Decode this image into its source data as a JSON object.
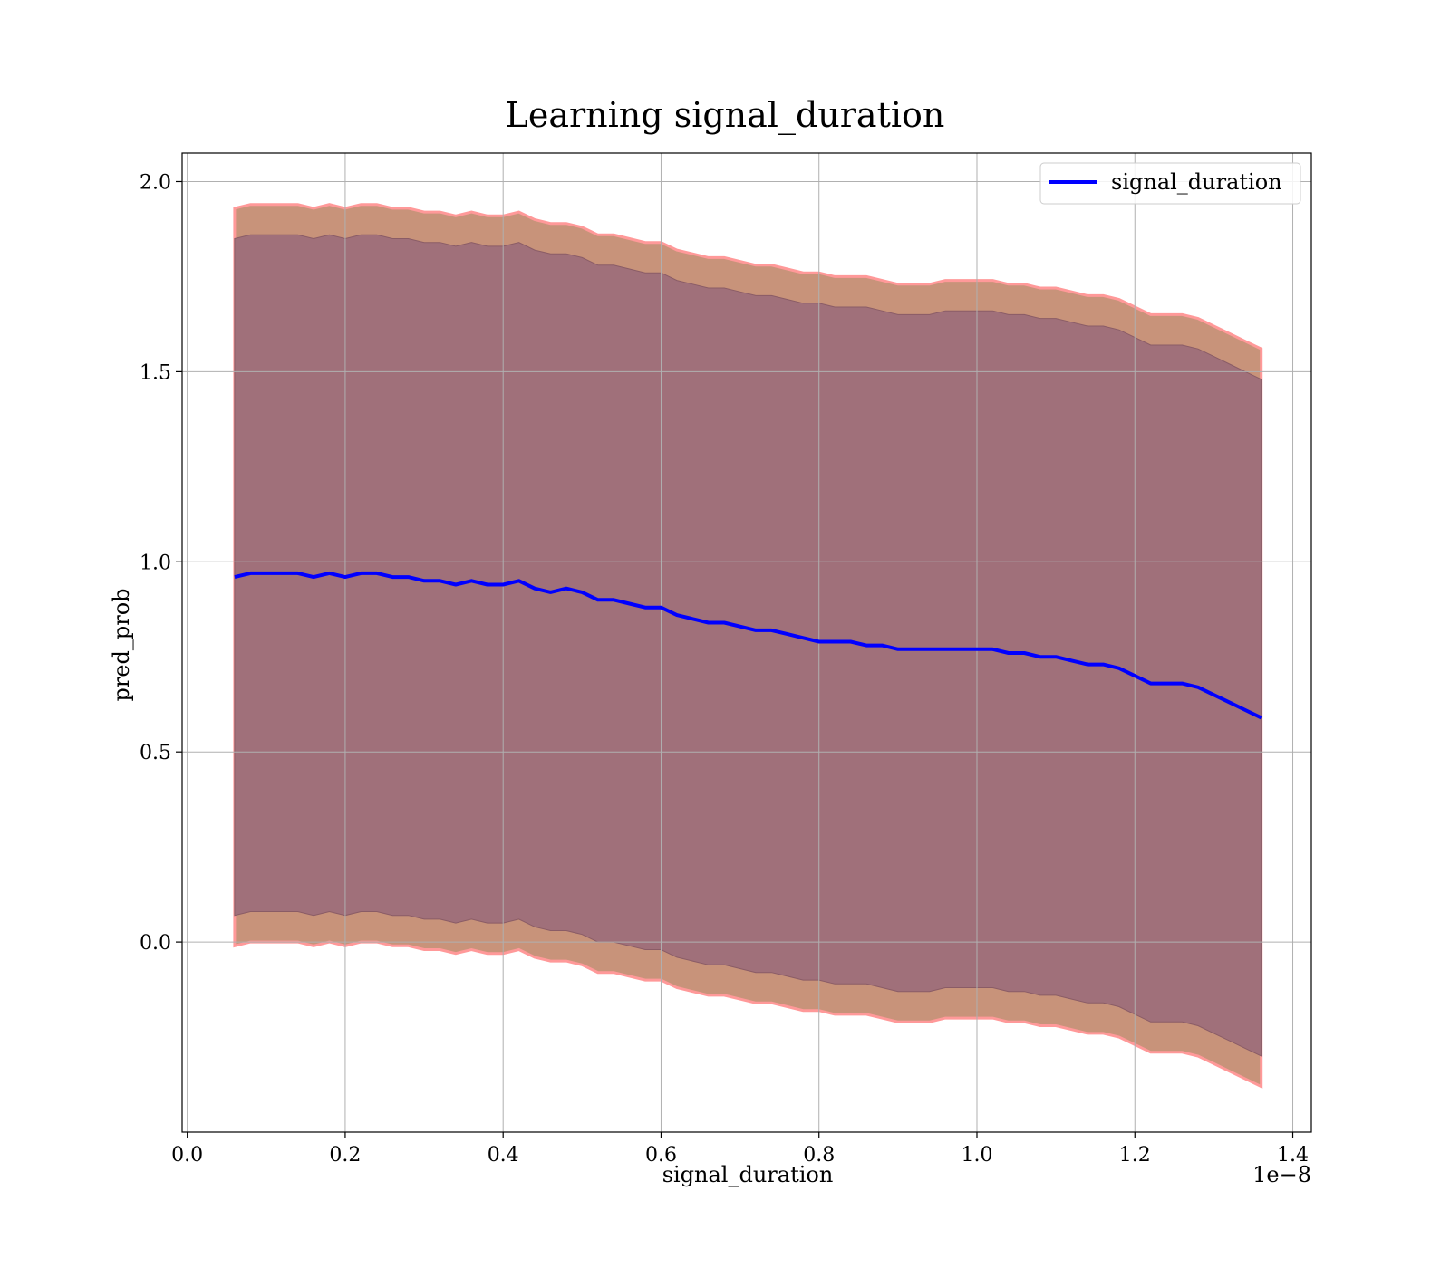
{
  "chart_data": {
    "type": "line",
    "title": "Learning signal_duration",
    "xlabel": "signal_duration",
    "ylabel": "pred_prob",
    "x_offset_text": "1e−8",
    "x_scale": 1e-08,
    "xlim": [
      -0.0065,
      1.4235
    ],
    "ylim": [
      -0.5,
      2.075
    ],
    "x_ticks": [
      0.0,
      0.2,
      0.4,
      0.6,
      0.8,
      1.0,
      1.2,
      1.4
    ],
    "x_tick_labels": [
      "0.0",
      "0.2",
      "0.4",
      "0.6",
      "0.8",
      "1.0",
      "1.2",
      "1.4"
    ],
    "y_ticks": [
      0.0,
      0.5,
      1.0,
      1.5,
      2.0
    ],
    "y_tick_labels": [
      "0.0",
      "0.5",
      "1.0",
      "1.5",
      "2.0"
    ],
    "grid": true,
    "legend": {
      "position": "top-right",
      "entries": [
        "signal_duration"
      ]
    },
    "colors": {
      "line": "#0000ff",
      "outer_band": "#c8937a",
      "outer_band_edge": "#ff9999",
      "inner_band": "#a0707a"
    },
    "series": [
      {
        "name": "signal_duration",
        "x": [
          0.06,
          0.08,
          0.1,
          0.12,
          0.14,
          0.16,
          0.18,
          0.2,
          0.22,
          0.24,
          0.26,
          0.28,
          0.3,
          0.32,
          0.34,
          0.36,
          0.38,
          0.4,
          0.42,
          0.44,
          0.46,
          0.48,
          0.5,
          0.52,
          0.54,
          0.56,
          0.58,
          0.6,
          0.62,
          0.64,
          0.66,
          0.68,
          0.7,
          0.72,
          0.74,
          0.76,
          0.78,
          0.8,
          0.82,
          0.84,
          0.86,
          0.88,
          0.9,
          0.92,
          0.94,
          0.96,
          0.98,
          1.0,
          1.02,
          1.04,
          1.06,
          1.08,
          1.1,
          1.12,
          1.14,
          1.16,
          1.18,
          1.2,
          1.22,
          1.24,
          1.26,
          1.28,
          1.3,
          1.32,
          1.34,
          1.36
        ],
        "y": [
          0.96,
          0.97,
          0.97,
          0.97,
          0.97,
          0.96,
          0.97,
          0.96,
          0.97,
          0.97,
          0.96,
          0.96,
          0.95,
          0.95,
          0.94,
          0.95,
          0.94,
          0.94,
          0.95,
          0.93,
          0.92,
          0.93,
          0.92,
          0.9,
          0.9,
          0.89,
          0.88,
          0.88,
          0.86,
          0.85,
          0.84,
          0.84,
          0.83,
          0.82,
          0.82,
          0.81,
          0.8,
          0.79,
          0.79,
          0.79,
          0.78,
          0.78,
          0.77,
          0.77,
          0.77,
          0.77,
          0.77,
          0.77,
          0.77,
          0.76,
          0.76,
          0.75,
          0.75,
          0.74,
          0.73,
          0.73,
          0.72,
          0.7,
          0.68,
          0.68,
          0.68,
          0.67,
          0.65,
          0.63,
          0.61,
          0.59
        ]
      }
    ],
    "bands": [
      {
        "kind": "outer",
        "upper": [
          1.93,
          1.94,
          1.94,
          1.94,
          1.94,
          1.93,
          1.94,
          1.93,
          1.94,
          1.94,
          1.93,
          1.93,
          1.92,
          1.92,
          1.91,
          1.92,
          1.91,
          1.91,
          1.92,
          1.9,
          1.89,
          1.89,
          1.88,
          1.86,
          1.86,
          1.85,
          1.84,
          1.84,
          1.82,
          1.81,
          1.8,
          1.8,
          1.79,
          1.78,
          1.78,
          1.77,
          1.76,
          1.76,
          1.75,
          1.75,
          1.75,
          1.74,
          1.73,
          1.73,
          1.73,
          1.74,
          1.74,
          1.74,
          1.74,
          1.73,
          1.73,
          1.72,
          1.72,
          1.71,
          1.7,
          1.7,
          1.69,
          1.67,
          1.65,
          1.65,
          1.65,
          1.64,
          1.62,
          1.6,
          1.58,
          1.56
        ],
        "lower": [
          -0.01,
          0.0,
          0.0,
          0.0,
          0.0,
          -0.01,
          0.0,
          -0.01,
          0.0,
          0.0,
          -0.01,
          -0.01,
          -0.02,
          -0.02,
          -0.03,
          -0.02,
          -0.03,
          -0.03,
          -0.02,
          -0.04,
          -0.05,
          -0.05,
          -0.06,
          -0.08,
          -0.08,
          -0.09,
          -0.1,
          -0.1,
          -0.12,
          -0.13,
          -0.14,
          -0.14,
          -0.15,
          -0.16,
          -0.16,
          -0.17,
          -0.18,
          -0.18,
          -0.19,
          -0.19,
          -0.19,
          -0.2,
          -0.21,
          -0.21,
          -0.21,
          -0.2,
          -0.2,
          -0.2,
          -0.2,
          -0.21,
          -0.21,
          -0.22,
          -0.22,
          -0.23,
          -0.24,
          -0.24,
          -0.25,
          -0.27,
          -0.29,
          -0.29,
          -0.29,
          -0.3,
          -0.32,
          -0.34,
          -0.36,
          -0.38
        ]
      },
      {
        "kind": "inner",
        "upper": [
          1.85,
          1.86,
          1.86,
          1.86,
          1.86,
          1.85,
          1.86,
          1.85,
          1.86,
          1.86,
          1.85,
          1.85,
          1.84,
          1.84,
          1.83,
          1.84,
          1.83,
          1.83,
          1.84,
          1.82,
          1.81,
          1.81,
          1.8,
          1.78,
          1.78,
          1.77,
          1.76,
          1.76,
          1.74,
          1.73,
          1.72,
          1.72,
          1.71,
          1.7,
          1.7,
          1.69,
          1.68,
          1.68,
          1.67,
          1.67,
          1.67,
          1.66,
          1.65,
          1.65,
          1.65,
          1.66,
          1.66,
          1.66,
          1.66,
          1.65,
          1.65,
          1.64,
          1.64,
          1.63,
          1.62,
          1.62,
          1.61,
          1.59,
          1.57,
          1.57,
          1.57,
          1.56,
          1.54,
          1.52,
          1.5,
          1.48
        ],
        "lower": [
          0.07,
          0.08,
          0.08,
          0.08,
          0.08,
          0.07,
          0.08,
          0.07,
          0.08,
          0.08,
          0.07,
          0.07,
          0.06,
          0.06,
          0.05,
          0.06,
          0.05,
          0.05,
          0.06,
          0.04,
          0.03,
          0.03,
          0.02,
          0.0,
          0.0,
          -0.01,
          -0.02,
          -0.02,
          -0.04,
          -0.05,
          -0.06,
          -0.06,
          -0.07,
          -0.08,
          -0.08,
          -0.09,
          -0.1,
          -0.1,
          -0.11,
          -0.11,
          -0.11,
          -0.12,
          -0.13,
          -0.13,
          -0.13,
          -0.12,
          -0.12,
          -0.12,
          -0.12,
          -0.13,
          -0.13,
          -0.14,
          -0.14,
          -0.15,
          -0.16,
          -0.16,
          -0.17,
          -0.19,
          -0.21,
          -0.21,
          -0.21,
          -0.22,
          -0.24,
          -0.26,
          -0.28,
          -0.3
        ]
      }
    ]
  }
}
